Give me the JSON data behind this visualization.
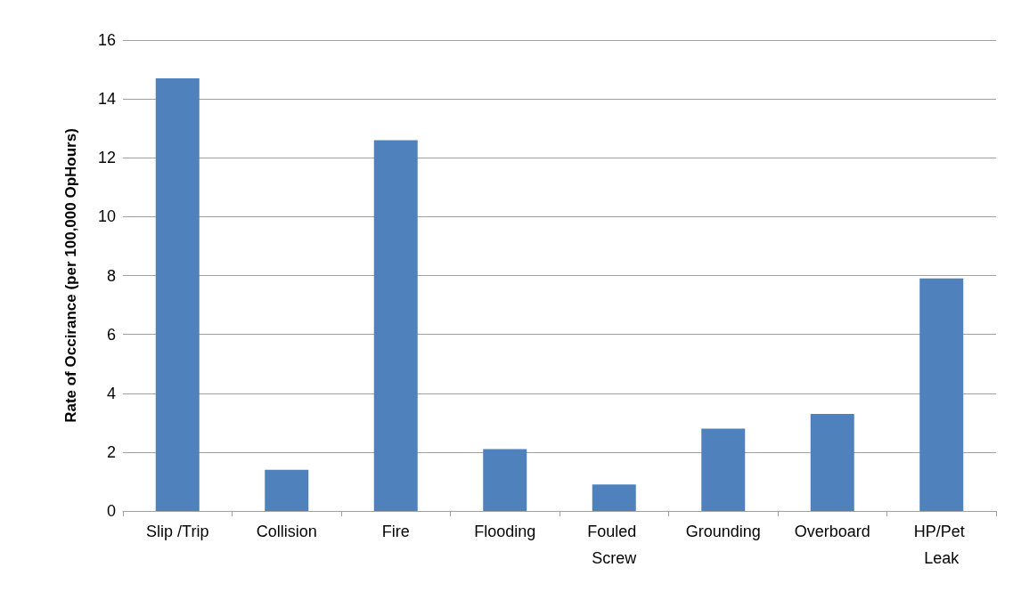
{
  "chart_data": {
    "type": "bar",
    "ylabel": "Rate of Occirance (per 100,000 OpHours)",
    "categories": [
      "Slip /Trip",
      "Collision",
      "Fire",
      "Flooding",
      "Fouled Screw",
      "Grounding",
      "Overboard",
      "HP/Pet Leak"
    ],
    "values": [
      14.7,
      1.4,
      12.6,
      2.1,
      0.9,
      2.8,
      3.3,
      7.9
    ],
    "color": "#4f81bd",
    "ylim": [
      0,
      16
    ],
    "yticks": [
      0,
      2,
      4,
      6,
      8,
      10,
      12,
      14,
      16
    ],
    "grid": "y"
  }
}
